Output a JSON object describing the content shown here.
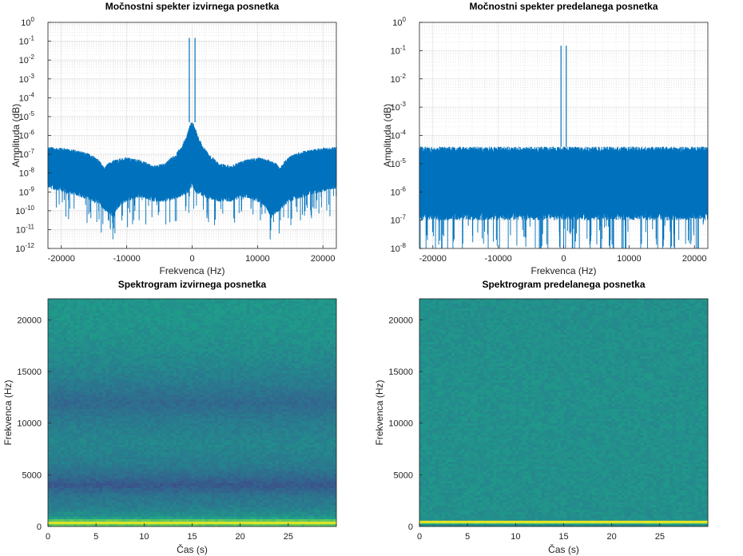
{
  "chart_data": [
    {
      "type": "line",
      "title": "Močnostni spekter izvirnega posnetka",
      "xlabel": "Frekvenca (Hz)",
      "ylabel": "Amplituda (dB)",
      "xlim": [
        -22050,
        22050
      ],
      "ylim": [
        1e-12,
        1
      ],
      "yscale": "log",
      "grid": true,
      "xticks": [
        -20000,
        -10000,
        0,
        10000,
        20000
      ],
      "xtick_labels": [
        "-20000",
        "-10000",
        "0",
        "10000",
        "20000"
      ],
      "ytick_exponents": [
        0,
        -1,
        -2,
        -3,
        -4,
        -5,
        -6,
        -7,
        -8,
        -9,
        -10,
        -11,
        -12
      ],
      "series_color": "#0072BD",
      "envelope": {
        "x": [
          -22050,
          -20000,
          -17000,
          -15000,
          -13500,
          -12000,
          -10000,
          -8000,
          -6000,
          -4000,
          -2500,
          -1500,
          -800,
          -400,
          -150,
          0,
          150,
          400,
          800,
          1500,
          2500,
          4000,
          6000,
          8000,
          10000,
          12000,
          13500,
          15000,
          17000,
          20000,
          22050
        ],
        "upper": [
          2.5e-07,
          2.2e-07,
          1.5e-07,
          8e-08,
          2e-08,
          5e-08,
          7e-08,
          5e-08,
          2.5e-08,
          3.5e-08,
          1e-07,
          3e-07,
          1e-06,
          3e-06,
          5e-06,
          5e-06,
          5e-06,
          3e-06,
          1e-06,
          3e-07,
          1e-07,
          3.5e-08,
          2.5e-08,
          5e-08,
          7e-08,
          5e-08,
          2e-08,
          8e-08,
          1.5e-07,
          2.2e-07,
          2.5e-07
        ],
        "lower": [
          1.5e-09,
          1e-09,
          5e-10,
          3e-10,
          1e-10,
          4e-11,
          3e-10,
          5e-10,
          3e-10,
          3e-10,
          4e-10,
          6e-10,
          8e-10,
          1e-09,
          1.5e-09,
          2e-09,
          1.5e-09,
          1e-09,
          8e-10,
          6e-10,
          4e-10,
          3e-10,
          3e-10,
          5e-10,
          3e-10,
          4e-11,
          1e-10,
          3e-10,
          5e-10,
          1e-09,
          1.5e-09
        ]
      },
      "peaks": [
        {
          "x": -440,
          "y": 0.15
        },
        {
          "x": 440,
          "y": 0.15
        }
      ]
    },
    {
      "type": "line",
      "title": "Močnostni spekter predelanega posnetka",
      "xlabel": "Frekvenca (Hz)",
      "ylabel": "Amplituda (dB)",
      "xlim": [
        -22050,
        22050
      ],
      "ylim": [
        1e-08,
        1
      ],
      "yscale": "log",
      "grid": true,
      "xticks": [
        -20000,
        -10000,
        0,
        10000,
        20000
      ],
      "xtick_labels": [
        "-20000",
        "-10000",
        "0",
        "10000",
        "20000"
      ],
      "ytick_exponents": [
        0,
        -1,
        -2,
        -3,
        -4,
        -5,
        -6,
        -7,
        -8
      ],
      "series_color": "#0072BD",
      "envelope": {
        "x": [
          -22050,
          22050
        ],
        "upper": [
          4e-05,
          4e-05
        ],
        "lower": [
          1e-07,
          1e-07
        ]
      },
      "peaks": [
        {
          "x": -400,
          "y": 0.15
        },
        {
          "x": 400,
          "y": 0.15
        }
      ]
    },
    {
      "type": "heatmap",
      "title": "Spektrogram izvirnega posnetka",
      "xlabel": "Čas (s)",
      "ylabel": "Frekvenca (Hz)",
      "xlim": [
        0,
        30
      ],
      "ylim": [
        0,
        22050
      ],
      "xticks": [
        0,
        5,
        10,
        15,
        20,
        25
      ],
      "yticks": [
        0,
        5000,
        10000,
        15000,
        20000
      ],
      "colormap": "viridis",
      "profile": {
        "freq": [
          0,
          300,
          500,
          700,
          1000,
          2000,
          3000,
          4000,
          5000,
          6000,
          8000,
          10000,
          12000,
          14000,
          16000,
          18000,
          20000,
          22050
        ],
        "level": [
          0.62,
          0.95,
          0.85,
          0.6,
          0.5,
          0.42,
          0.38,
          0.27,
          0.36,
          0.42,
          0.46,
          0.42,
          0.34,
          0.42,
          0.47,
          0.5,
          0.52,
          0.52
        ]
      }
    },
    {
      "type": "heatmap",
      "title": "Spektrogram predelanega posnetka",
      "xlabel": "Čas (s)",
      "ylabel": "Frekvenca (Hz)",
      "xlim": [
        0,
        30
      ],
      "ylim": [
        0,
        22050
      ],
      "xticks": [
        0,
        5,
        10,
        15,
        20,
        25
      ],
      "yticks": [
        0,
        5000,
        10000,
        15000,
        20000
      ],
      "colormap": "viridis",
      "profile": {
        "freq": [
          0,
          300,
          400,
          500,
          22050
        ],
        "level": [
          0.5,
          0.5,
          0.97,
          0.5,
          0.5
        ]
      }
    }
  ]
}
